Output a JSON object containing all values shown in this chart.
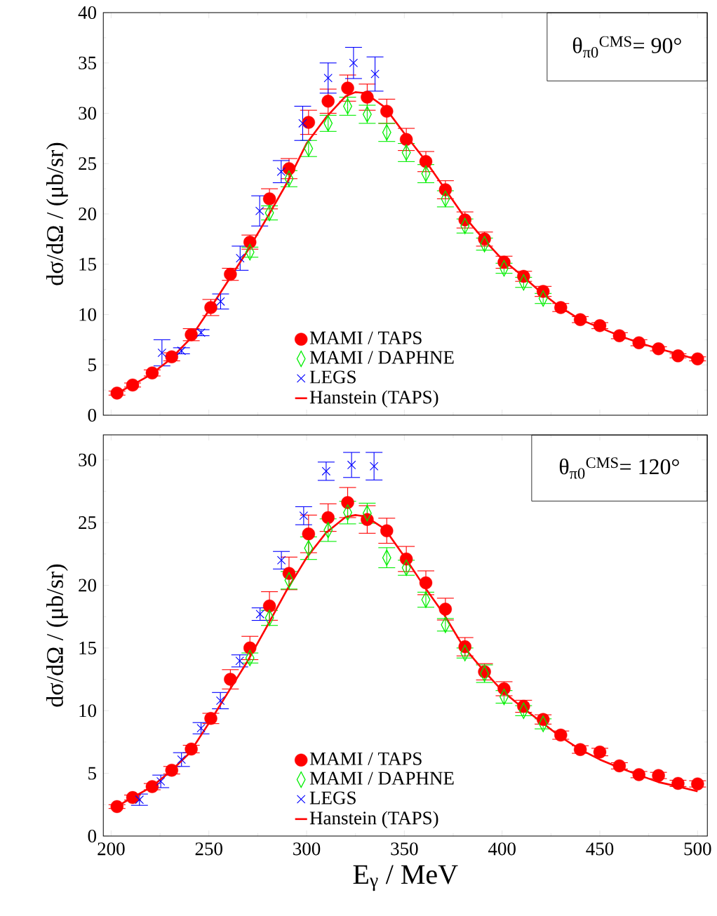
{
  "chart_data": [
    {
      "type": "scatter",
      "ylabel": "dσ/dΩ / (μb/sr)",
      "xlim": [
        196,
        505
      ],
      "ylim": [
        0,
        40
      ],
      "xticks": [
        200,
        250,
        300,
        350,
        400,
        450,
        500
      ],
      "yticks": [
        0,
        5,
        10,
        15,
        20,
        25,
        30,
        35,
        40
      ],
      "tick_labels": "y",
      "legend": "bottom",
      "annotations": [
        "θ$_{π0}$$^{CMS}$= 90°"
      ],
      "series": [
        {
          "name": "MAMI / TAPS",
          "color": "#ff0000",
          "marker": "circle",
          "x": [
            203,
            211,
            221,
            231,
            241,
            251,
            261,
            271,
            281,
            291,
            301,
            311,
            321,
            331,
            341,
            351,
            361,
            371,
            381,
            391,
            401,
            411,
            421,
            430,
            440,
            450,
            460,
            470,
            480,
            490,
            500
          ],
          "values": [
            2.2,
            3.0,
            4.2,
            5.8,
            8.0,
            10.7,
            14.0,
            17.2,
            21.5,
            24.5,
            29.1,
            31.2,
            32.5,
            31.6,
            30.2,
            27.4,
            25.2,
            22.4,
            19.4,
            17.5,
            15.2,
            13.8,
            12.3,
            10.7,
            9.5,
            8.9,
            7.9,
            7.2,
            6.6,
            5.9,
            5.6
          ],
          "errors": [
            0.2,
            0.2,
            0.3,
            0.4,
            0.6,
            0.8,
            0.6,
            0.7,
            1.0,
            1.0,
            1.2,
            1.2,
            1.3,
            1.3,
            1.2,
            1.1,
            1.0,
            0.9,
            0.8,
            0.7,
            0.6,
            0.5,
            0.5,
            0.4,
            0.3,
            0.3,
            0.3,
            0.3,
            0.2,
            0.2,
            0.2
          ]
        },
        {
          "name": "MAMI / DAPHNE",
          "color": "#00ee00",
          "marker": "diamond",
          "x": [
            271,
            281,
            291,
            301,
            311,
            321,
            331,
            341,
            351,
            361,
            371,
            381,
            391,
            401,
            411,
            421
          ],
          "values": [
            16.2,
            20.1,
            23.5,
            26.5,
            29.0,
            30.7,
            29.9,
            28.1,
            26.1,
            24.0,
            21.5,
            18.8,
            17.0,
            14.6,
            13.2,
            11.6
          ],
          "errors": [
            0.5,
            0.7,
            0.8,
            0.8,
            0.8,
            0.9,
            0.9,
            0.9,
            0.9,
            0.9,
            0.8,
            0.7,
            0.6,
            0.5,
            0.5,
            0.5
          ]
        },
        {
          "name": "LEGS",
          "color": "#0000ff",
          "marker": "cross",
          "x": [
            226,
            236,
            246,
            256,
            266,
            276,
            287,
            298,
            311,
            324,
            335
          ],
          "values": [
            6.2,
            6.4,
            8.2,
            11.3,
            15.6,
            20.3,
            24.2,
            29.0,
            33.5,
            35.0,
            33.9
          ],
          "errors": [
            1.3,
            0.3,
            0.3,
            0.75,
            1.2,
            1.5,
            1.1,
            1.7,
            1.5,
            1.55,
            1.7
          ]
        },
        {
          "name": "Hanstein (TAPS)",
          "color": "#ff0000",
          "type": "line",
          "x": [
            202,
            210,
            220,
            230,
            240,
            250,
            260,
            270,
            280,
            290,
            300,
            310,
            320,
            325,
            330,
            340,
            350,
            360,
            370,
            380,
            390,
            400,
            410,
            420,
            430,
            440,
            450,
            460,
            470,
            480,
            490,
            500
          ],
          "values": [
            2.1,
            2.9,
            4.0,
            5.5,
            7.5,
            10.4,
            13.4,
            16.4,
            19.7,
            23.1,
            27.0,
            29.6,
            31.7,
            32.1,
            32.0,
            30.6,
            28.0,
            25.5,
            22.7,
            19.9,
            17.6,
            15.5,
            13.9,
            12.2,
            10.7,
            9.5,
            8.7,
            7.9,
            7.2,
            6.6,
            6.1,
            5.5
          ]
        }
      ]
    },
    {
      "type": "scatter",
      "ylabel": "dσ/dΩ / (μb/sr)",
      "xlabel": "E$_{γ}$ / MeV",
      "xlim": [
        196,
        505
      ],
      "ylim": [
        0,
        32
      ],
      "xticks": [
        200,
        250,
        300,
        350,
        400,
        450,
        500
      ],
      "yticks": [
        0,
        5,
        10,
        15,
        20,
        25,
        30
      ],
      "legend": "bottom",
      "annotations": [
        "θ$_{π0}$$^{CMS}$= 120°"
      ],
      "series": [
        {
          "name": "MAMI / TAPS",
          "color": "#ff0000",
          "marker": "circle",
          "x": [
            203,
            211,
            221,
            231,
            241,
            251,
            261,
            271,
            281,
            291,
            301,
            311,
            321,
            331,
            341,
            351,
            361,
            371,
            381,
            391,
            401,
            411,
            421,
            430,
            440,
            450,
            460,
            470,
            480,
            490,
            500
          ],
          "values": [
            2.35,
            3.07,
            3.94,
            5.25,
            6.94,
            9.38,
            12.5,
            15.0,
            18.35,
            20.95,
            24.1,
            25.4,
            26.6,
            25.25,
            24.35,
            22.1,
            20.2,
            18.1,
            15.1,
            13.1,
            11.75,
            10.35,
            9.3,
            8.05,
            6.9,
            6.7,
            5.6,
            4.9,
            4.83,
            4.2,
            4.16
          ],
          "errors": [
            0.15,
            0.2,
            0.25,
            0.3,
            0.3,
            0.41,
            0.77,
            0.93,
            1.14,
            1.3,
            1.5,
            1.1,
            1.2,
            1.1,
            1.0,
            1.0,
            0.95,
            0.87,
            0.73,
            0.65,
            0.56,
            0.48,
            0.37,
            0.33,
            0.3,
            0.3,
            0.25,
            0.25,
            0.25,
            0.25,
            0.25
          ]
        },
        {
          "name": "MAMI / DAPHNE",
          "color": "#00ee00",
          "marker": "diamond",
          "x": [
            271,
            281,
            291,
            301,
            311,
            321,
            331,
            341,
            351,
            361,
            371,
            381,
            391,
            401,
            411,
            421
          ],
          "values": [
            14.2,
            17.4,
            20.4,
            22.96,
            24.4,
            25.8,
            25.75,
            22.2,
            21.4,
            18.85,
            16.85,
            14.6,
            12.95,
            11.1,
            10.0,
            8.95
          ],
          "errors": [
            0.4,
            0.6,
            0.7,
            0.9,
            0.9,
            0.9,
            0.8,
            0.8,
            0.6,
            0.6,
            0.5,
            0.4,
            0.7,
            0.5,
            0.4,
            0.4
          ]
        },
        {
          "name": "LEGS",
          "color": "#0000ff",
          "marker": "cross",
          "x": [
            214.5,
            225.4,
            236,
            246,
            255.9,
            265.8,
            276.2,
            287.1,
            298.5,
            310,
            323,
            334.5
          ],
          "values": [
            2.9,
            4.36,
            6.1,
            8.6,
            10.8,
            13.97,
            17.7,
            22.0,
            25.55,
            29.1,
            29.6,
            29.5
          ],
          "errors": [
            0.45,
            0.5,
            0.55,
            0.45,
            0.65,
            0.48,
            0.5,
            0.7,
            0.72,
            0.73,
            1.0,
            1.1
          ]
        },
        {
          "name": "Hanstein (TAPS)",
          "color": "#ff0000",
          "type": "line",
          "x": [
            203,
            210,
            220,
            230,
            240,
            250,
            260,
            270,
            280,
            290,
            300,
            310,
            320,
            325,
            330,
            340,
            350,
            360,
            370,
            380,
            390,
            400,
            410,
            420,
            430,
            440,
            450,
            460,
            470,
            480,
            490,
            500
          ],
          "values": [
            2.35,
            3.0,
            3.85,
            5.1,
            6.6,
            9.0,
            11.5,
            14.0,
            16.8,
            19.65,
            22.2,
            24.2,
            25.45,
            25.6,
            25.5,
            24.5,
            22.3,
            19.95,
            17.75,
            15.15,
            13.3,
            11.6,
            10.3,
            9.1,
            7.9,
            6.9,
            6.1,
            5.45,
            4.86,
            4.3,
            3.95,
            3.57
          ]
        }
      ]
    }
  ]
}
